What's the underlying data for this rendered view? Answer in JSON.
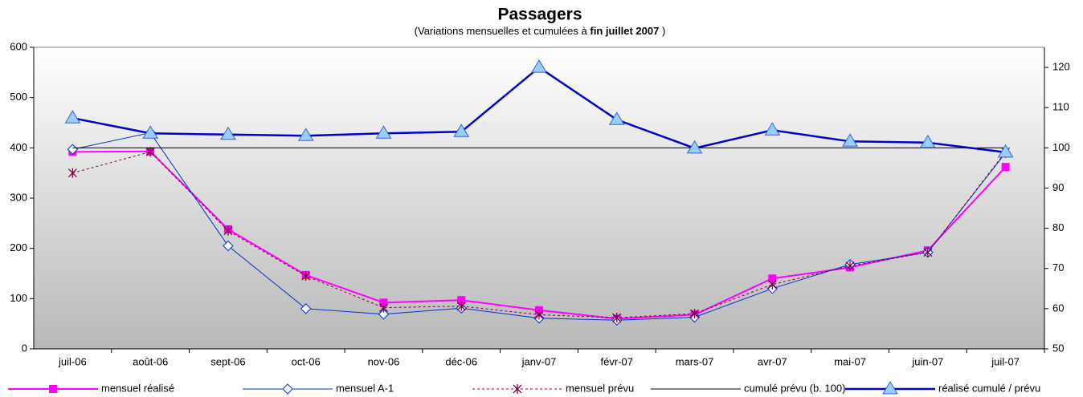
{
  "chart_data": {
    "type": "line",
    "title": "Passagers",
    "subtitle": [
      "(Variations mensuelles et cumulées à",
      "fin juillet 2007",
      ")"
    ],
    "categories": [
      "juil-06",
      "août-06",
      "sept-06",
      "oct-06",
      "nov-06",
      "déc-06",
      "janv-07",
      "févr-07",
      "mars-07",
      "avr-07",
      "mai-07",
      "juin-07",
      "juil-07"
    ],
    "ylim": [
      0,
      600
    ],
    "yticks": [
      0,
      100,
      200,
      300,
      400,
      500,
      600
    ],
    "y2lim": [
      50,
      125
    ],
    "y2ticks": [
      50,
      60,
      70,
      80,
      90,
      100,
      110,
      120
    ],
    "series": [
      {
        "name": "mensuel réalisé",
        "color": "#ff00ff",
        "marker": "square",
        "dash": false,
        "values": [
          392,
          393,
          238,
          147,
          92,
          97,
          77,
          60,
          68,
          140,
          162,
          196,
          362
        ]
      },
      {
        "name": "mensuel A-1",
        "color": "#0033cc",
        "marker": "diamond",
        "dash": false,
        "values": [
          397,
          430,
          205,
          80,
          69,
          81,
          61,
          57,
          63,
          120,
          168,
          192,
          390
        ]
      },
      {
        "name": "mensuel prévu",
        "color": "#800040",
        "marker": "star",
        "dash": true,
        "values": [
          350,
          392,
          235,
          145,
          82,
          85,
          68,
          62,
          70,
          128,
          165,
          192,
          392
        ]
      },
      {
        "name": "cumulé prévu (b. 100)",
        "color": "#000000",
        "marker": "none",
        "dash": false,
        "axis": "y2",
        "values": [
          100,
          100,
          100,
          100,
          100,
          100,
          100,
          100,
          100,
          100,
          100,
          100,
          100
        ]
      },
      {
        "name": "réalisé cumulé / prévu",
        "color": "#0000cc",
        "marker": "triangle",
        "dash": false,
        "axis": "y2",
        "values": [
          107.4,
          103.6,
          103.3,
          103,
          103.6,
          104,
          120,
          107,
          99.9,
          104.4,
          101.6,
          101.3,
          98.9
        ]
      }
    ]
  }
}
